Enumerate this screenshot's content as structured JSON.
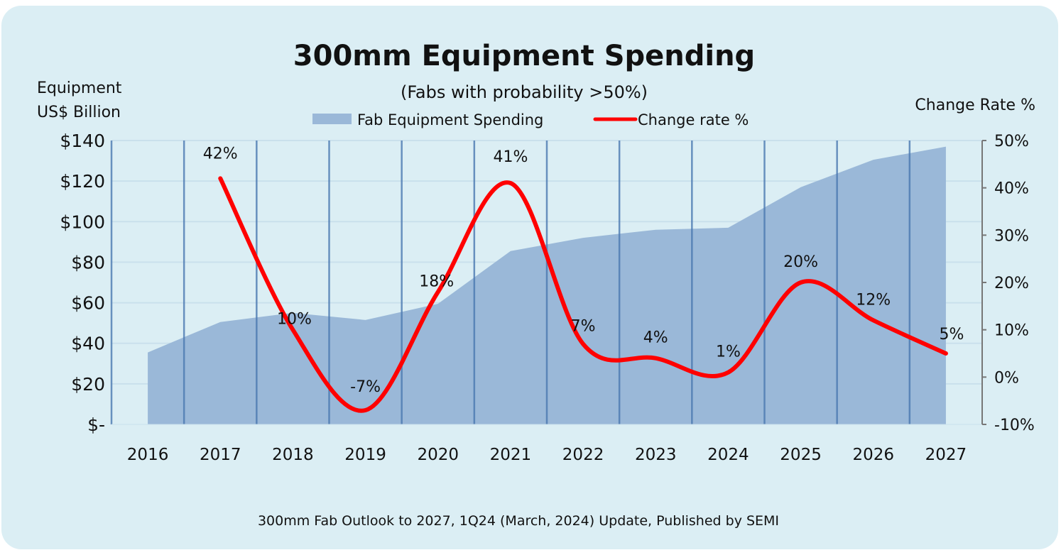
{
  "chart_data": {
    "type": "area+line",
    "title": "300mm Equipment Spending",
    "subtitle": "(Fabs with probability >50%)",
    "ylabel_left": [
      "Equipment",
      "US$ Billion"
    ],
    "ylabel_right": "Change Rate %",
    "source": "300mm Fab Outlook to 2027, 1Q24 (March, 2024) Update, Published by SEMI",
    "categories": [
      "2016",
      "2017",
      "2018",
      "2019",
      "2020",
      "2021",
      "2022",
      "2023",
      "2024",
      "2025",
      "2026",
      "2027"
    ],
    "left_axis": {
      "range": [
        0,
        140
      ],
      "ticks": [
        "$-",
        "$20",
        "$40",
        "$60",
        "$80",
        "$100",
        "$120",
        "$140"
      ]
    },
    "right_axis": {
      "range": [
        -10,
        50
      ],
      "ticks": [
        "-10%",
        "0%",
        "10%",
        "20%",
        "30%",
        "40%",
        "50%"
      ]
    },
    "series": [
      {
        "name": "Fab Equipment Spending",
        "type": "area",
        "axis": "left",
        "color": "#9ab8d8",
        "values": [
          35.5,
          50.5,
          55,
          51.5,
          59.5,
          85.5,
          92,
          96,
          97,
          117,
          130.5,
          137
        ]
      },
      {
        "name": "Change rate %",
        "type": "line",
        "axis": "right",
        "color": "#ff0000",
        "values": [
          null,
          42,
          10,
          -7,
          18,
          41,
          7,
          4,
          1,
          20,
          12,
          5
        ],
        "labels": [
          null,
          "42%",
          "10%",
          "-7%",
          "18%",
          "41%",
          "7%",
          "4%",
          "1%",
          "20%",
          "12%",
          "5%"
        ]
      }
    ],
    "legend": "top-center",
    "grid": "vertical category separators, faint horizontal"
  }
}
